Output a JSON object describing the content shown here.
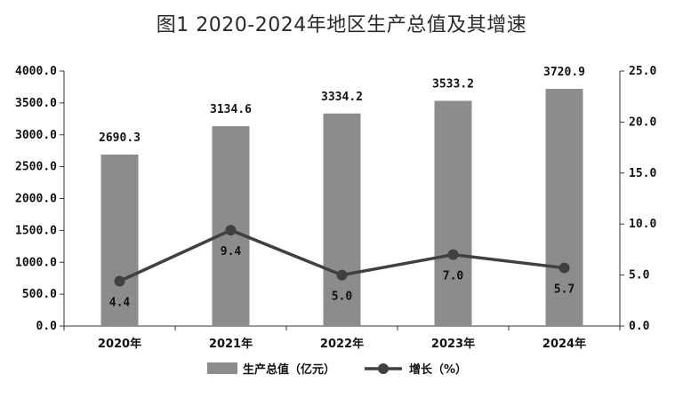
{
  "chart_data": {
    "type": "bar",
    "title": "图1  2020-2024年地区生产总值及其增速",
    "categories": [
      "2020年",
      "2021年",
      "2022年",
      "2023年",
      "2024年"
    ],
    "series": [
      {
        "name": "生产总值（亿元）",
        "type": "bar",
        "axis": "left",
        "values": [
          2690.3,
          3134.6,
          3334.2,
          3533.2,
          3720.9
        ],
        "color": "#8c8c8c"
      },
      {
        "name": "增长（%）",
        "type": "line",
        "axis": "right",
        "values": [
          4.4,
          9.4,
          5.0,
          7.0,
          5.7
        ],
        "color": "#404040"
      }
    ],
    "bar_labels": [
      "2690.3",
      "3134.6",
      "3334.2",
      "3533.2",
      "3720.9"
    ],
    "line_labels": [
      "4.4",
      "9.4",
      "5.0",
      "7.0",
      "5.7"
    ],
    "y_left": {
      "range": [
        0,
        4000
      ],
      "ticks": [
        "0.0",
        "500.0",
        "1000.0",
        "1500.0",
        "2000.0",
        "2500.0",
        "3000.0",
        "3500.0",
        "4000.0"
      ]
    },
    "y_right": {
      "range": [
        0,
        25
      ],
      "ticks": [
        "0.0",
        "5.0",
        "10.0",
        "15.0",
        "20.0",
        "25.0"
      ]
    },
    "grid": false,
    "legend": {
      "position": "bottom"
    }
  }
}
